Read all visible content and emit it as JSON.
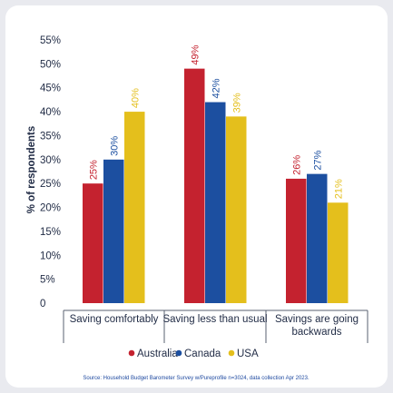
{
  "chart_data": {
    "type": "bar",
    "categories": [
      "Saving comfortably",
      "Saving less than usual",
      "Savings are going backwards"
    ],
    "category_lines": [
      [
        "Saving comfortably"
      ],
      [
        "Saving less than usual"
      ],
      [
        "Savings are going",
        "backwards"
      ]
    ],
    "series": [
      {
        "name": "Australia",
        "color": "#c4222f",
        "values": [
          25,
          49,
          26
        ]
      },
      {
        "name": "Canada",
        "color": "#1c4fa0",
        "values": [
          30,
          42,
          27
        ]
      },
      {
        "name": "USA",
        "color": "#e4bf1c",
        "values": [
          40,
          39,
          21
        ]
      }
    ],
    "value_labels": [
      [
        "25%",
        "49%",
        "26%"
      ],
      [
        "30%",
        "42%",
        "27%"
      ],
      [
        "40%",
        "39%",
        "21%"
      ]
    ],
    "ylabel": "% of respondents",
    "yticks": [
      0,
      5,
      10,
      15,
      20,
      25,
      30,
      35,
      40,
      45,
      50,
      55
    ],
    "ytick_labels": [
      "0",
      "5%",
      "10%",
      "15%",
      "20%",
      "25%",
      "30%",
      "35%",
      "40%",
      "45%",
      "50%",
      "55%"
    ],
    "ylim": [
      0,
      55
    ],
    "legend_position": "bottom",
    "grid": false
  },
  "source_note": "Source: Household Budget Barometer Survey w/Pureprofile n=3024, data collection Apr 2023."
}
